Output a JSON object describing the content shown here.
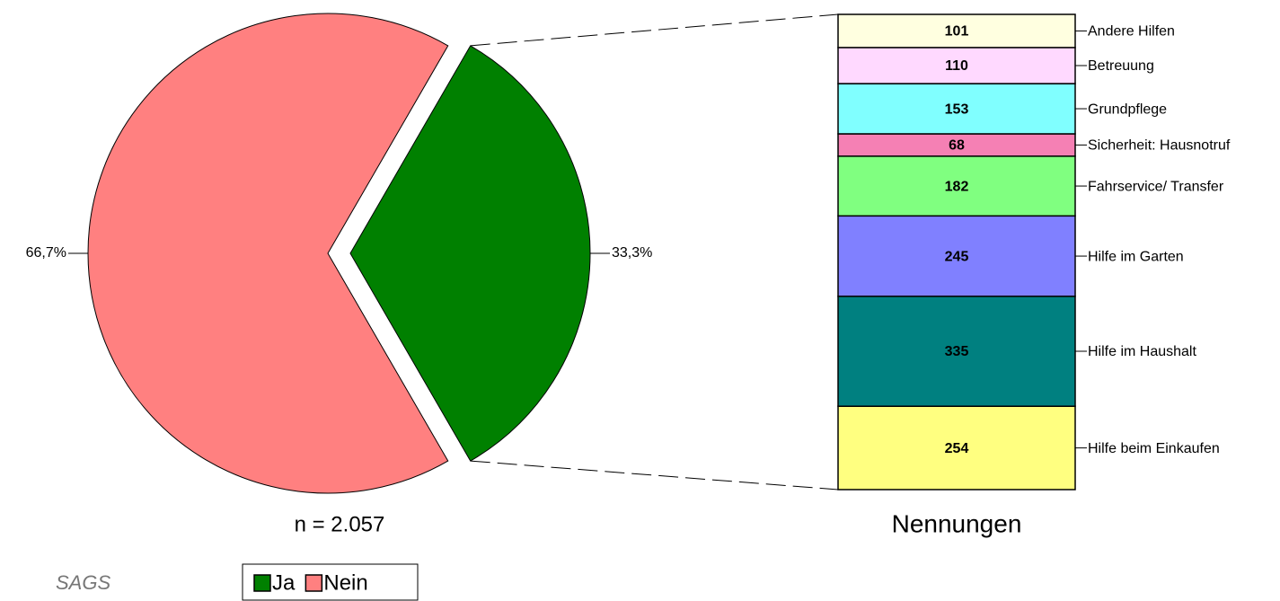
{
  "logo": "SAGS",
  "chart_data": [
    {
      "type": "pie",
      "caption": "n = 2.057",
      "categories": [
        "Ja",
        "Nein"
      ],
      "values": [
        33.3,
        66.7
      ],
      "value_labels": [
        "33,3%",
        "66,7%"
      ],
      "colors": [
        "#008000",
        "#ff8080"
      ]
    },
    {
      "type": "bar",
      "title": "Nennungen",
      "stacked": true,
      "categories": [
        "Hilfe beim Einkaufen",
        "Hilfe im Haushalt",
        "Hilfe im Garten",
        "Fahrservice/ Transfer",
        "Sicherheit: Hausnotruf",
        "Grundpflege",
        "Betreuung",
        "Andere Hilfen"
      ],
      "values": [
        254,
        335,
        245,
        182,
        68,
        153,
        110,
        101
      ],
      "colors": [
        "#ffff80",
        "#008080",
        "#8080ff",
        "#80ff80",
        "#f580b4",
        "#80ffff",
        "#ffd9ff",
        "#ffffe0"
      ]
    }
  ]
}
